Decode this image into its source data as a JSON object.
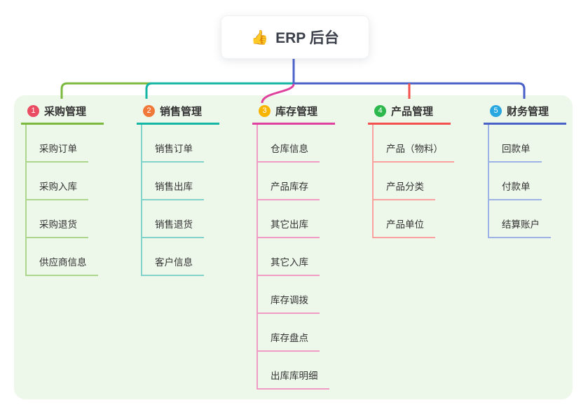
{
  "root": {
    "icon": "👍",
    "title": "ERP 后台"
  },
  "colors": {
    "panel_bg": "#EDF7EA",
    "stem": "#4E63CD",
    "root_text": "#3A3F4A",
    "node_text": "#333333"
  },
  "branches": [
    {
      "badge": "1",
      "label": "采购管理",
      "badge_color": "#EA4C62",
      "line_color": "#7CB93F",
      "child_line_color": "#ABD68C",
      "children": [
        "采购订单",
        "采购入库",
        "采购退货",
        "供应商信息"
      ]
    },
    {
      "badge": "2",
      "label": "销售管理",
      "badge_color": "#F0793A",
      "line_color": "#13B5A5",
      "child_line_color": "#81D2CA",
      "children": [
        "销售订单",
        "销售出库",
        "销售退货",
        "客户信息"
      ]
    },
    {
      "badge": "3",
      "label": "库存管理",
      "badge_color": "#F7B500",
      "line_color": "#E0419E",
      "child_line_color": "#F09CC7",
      "children": [
        "仓库信息",
        "产品库存",
        "其它出库",
        "其它入库",
        "库存调拨",
        "库存盘点",
        "出库库明细"
      ]
    },
    {
      "badge": "4",
      "label": "产品管理",
      "badge_color": "#2DB84E",
      "line_color": "#F4514E",
      "child_line_color": "#F8A19E",
      "children": [
        "产品（物料）",
        "产品分类",
        "产品单位"
      ]
    },
    {
      "badge": "5",
      "label": "财务管理",
      "badge_color": "#29A7E1",
      "line_color": "#4961C7",
      "child_line_color": "#9DB3E6",
      "children": [
        "回款单",
        "付款单",
        "结算账户"
      ]
    }
  ]
}
